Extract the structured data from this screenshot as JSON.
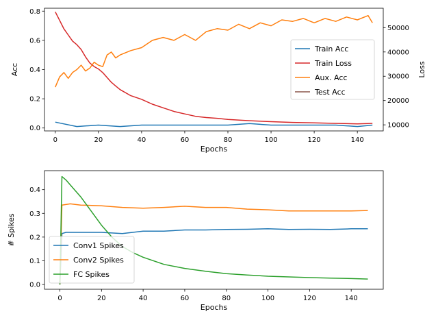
{
  "chart_data": [
    {
      "type": "line",
      "xlabel": "Epochs",
      "ylabel": "Acc",
      "ylabel_right": "Loss",
      "xlim": [
        -5,
        152
      ],
      "ylim": [
        -0.02,
        0.82
      ],
      "ylim_right": [
        7500,
        58000
      ],
      "xticks": [
        0,
        20,
        40,
        60,
        80,
        100,
        120,
        140
      ],
      "yticks": [
        0.0,
        0.2,
        0.4,
        0.6,
        0.8
      ],
      "yticks_right": [
        10000,
        20000,
        30000,
        40000,
        50000
      ],
      "grid": false,
      "legend_position": "center-right",
      "legend": [
        "Train Acc",
        "Train Loss",
        "Aux. Acc",
        "Test Acc"
      ],
      "series": [
        {
          "name": "Train Acc",
          "axis": "left",
          "color": "#1f77b4",
          "x": [
            0,
            10,
            20,
            30,
            40,
            50,
            60,
            70,
            80,
            90,
            100,
            110,
            120,
            130,
            140,
            147
          ],
          "values": [
            0.04,
            0.01,
            0.02,
            0.01,
            0.02,
            0.02,
            0.02,
            0.02,
            0.02,
            0.03,
            0.02,
            0.02,
            0.02,
            0.02,
            0.01,
            0.02
          ]
        },
        {
          "name": "Train Loss",
          "axis": "right",
          "color": "#d62728",
          "x": [
            0,
            2,
            4,
            6,
            8,
            10,
            12,
            14,
            16,
            18,
            20,
            22,
            24,
            26,
            28,
            30,
            35,
            40,
            45,
            50,
            55,
            60,
            65,
            70,
            75,
            80,
            90,
            100,
            110,
            120,
            130,
            140,
            147
          ],
          "values": [
            56500,
            53000,
            49500,
            47000,
            44500,
            43000,
            41000,
            38000,
            35500,
            34000,
            33000,
            31500,
            29500,
            27500,
            26000,
            24500,
            22000,
            20500,
            18500,
            17000,
            15500,
            14500,
            13500,
            13000,
            12700,
            12200,
            11700,
            11300,
            11000,
            10800,
            10600,
            10400,
            10600
          ]
        },
        {
          "name": "Aux. Acc",
          "axis": "left",
          "color": "#ff7f0e",
          "x": [
            0,
            2,
            4,
            6,
            8,
            10,
            12,
            14,
            16,
            18,
            20,
            22,
            24,
            26,
            28,
            30,
            35,
            40,
            45,
            50,
            55,
            60,
            65,
            70,
            75,
            80,
            85,
            90,
            95,
            100,
            105,
            110,
            115,
            120,
            125,
            130,
            135,
            140,
            145,
            147
          ],
          "values": [
            0.28,
            0.35,
            0.38,
            0.34,
            0.38,
            0.4,
            0.43,
            0.39,
            0.41,
            0.45,
            0.43,
            0.42,
            0.5,
            0.52,
            0.48,
            0.5,
            0.53,
            0.55,
            0.6,
            0.62,
            0.6,
            0.64,
            0.6,
            0.66,
            0.68,
            0.67,
            0.71,
            0.68,
            0.72,
            0.7,
            0.74,
            0.73,
            0.75,
            0.72,
            0.75,
            0.73,
            0.76,
            0.74,
            0.77,
            0.72
          ]
        },
        {
          "name": "Test Acc",
          "axis": "left",
          "color": "#8c564b",
          "x": [],
          "values": []
        }
      ]
    },
    {
      "type": "line",
      "xlabel": "Epochs",
      "ylabel": "# Spikes",
      "xlim": [
        -7.4,
        155.4
      ],
      "ylim": [
        -0.02,
        0.48
      ],
      "xticks": [
        0,
        20,
        40,
        60,
        80,
        100,
        120,
        140
      ],
      "yticks": [
        0.0,
        0.1,
        0.2,
        0.3,
        0.4
      ],
      "grid": false,
      "legend_position": "lower-left",
      "legend": [
        "Conv1 Spikes",
        "Conv2 Spikes",
        "FC Spikes"
      ],
      "series": [
        {
          "name": "Conv1 Spikes",
          "color": "#1f77b4",
          "x": [
            0,
            1,
            3,
            10,
            20,
            30,
            40,
            50,
            60,
            70,
            80,
            90,
            100,
            110,
            120,
            130,
            140,
            148
          ],
          "values": [
            0.0,
            0.215,
            0.22,
            0.22,
            0.22,
            0.215,
            0.225,
            0.225,
            0.23,
            0.23,
            0.232,
            0.233,
            0.235,
            0.232,
            0.233,
            0.232,
            0.235,
            0.235
          ]
        },
        {
          "name": "Conv2 Spikes",
          "color": "#ff7f0e",
          "x": [
            0,
            1,
            5,
            10,
            20,
            30,
            40,
            50,
            60,
            70,
            80,
            90,
            100,
            110,
            120,
            130,
            140,
            148
          ],
          "values": [
            0.0,
            0.335,
            0.34,
            0.335,
            0.332,
            0.325,
            0.322,
            0.325,
            0.33,
            0.325,
            0.325,
            0.318,
            0.315,
            0.31,
            0.31,
            0.31,
            0.31,
            0.312
          ]
        },
        {
          "name": "FC Spikes",
          "color": "#2ca02c",
          "x": [
            0,
            1,
            3,
            6,
            10,
            15,
            20,
            25,
            30,
            35,
            40,
            50,
            60,
            70,
            80,
            90,
            100,
            110,
            120,
            130,
            140,
            148
          ],
          "values": [
            0.0,
            0.455,
            0.44,
            0.41,
            0.37,
            0.31,
            0.25,
            0.2,
            0.16,
            0.135,
            0.115,
            0.085,
            0.068,
            0.056,
            0.046,
            0.04,
            0.035,
            0.032,
            0.029,
            0.027,
            0.025,
            0.023
          ]
        }
      ]
    }
  ]
}
